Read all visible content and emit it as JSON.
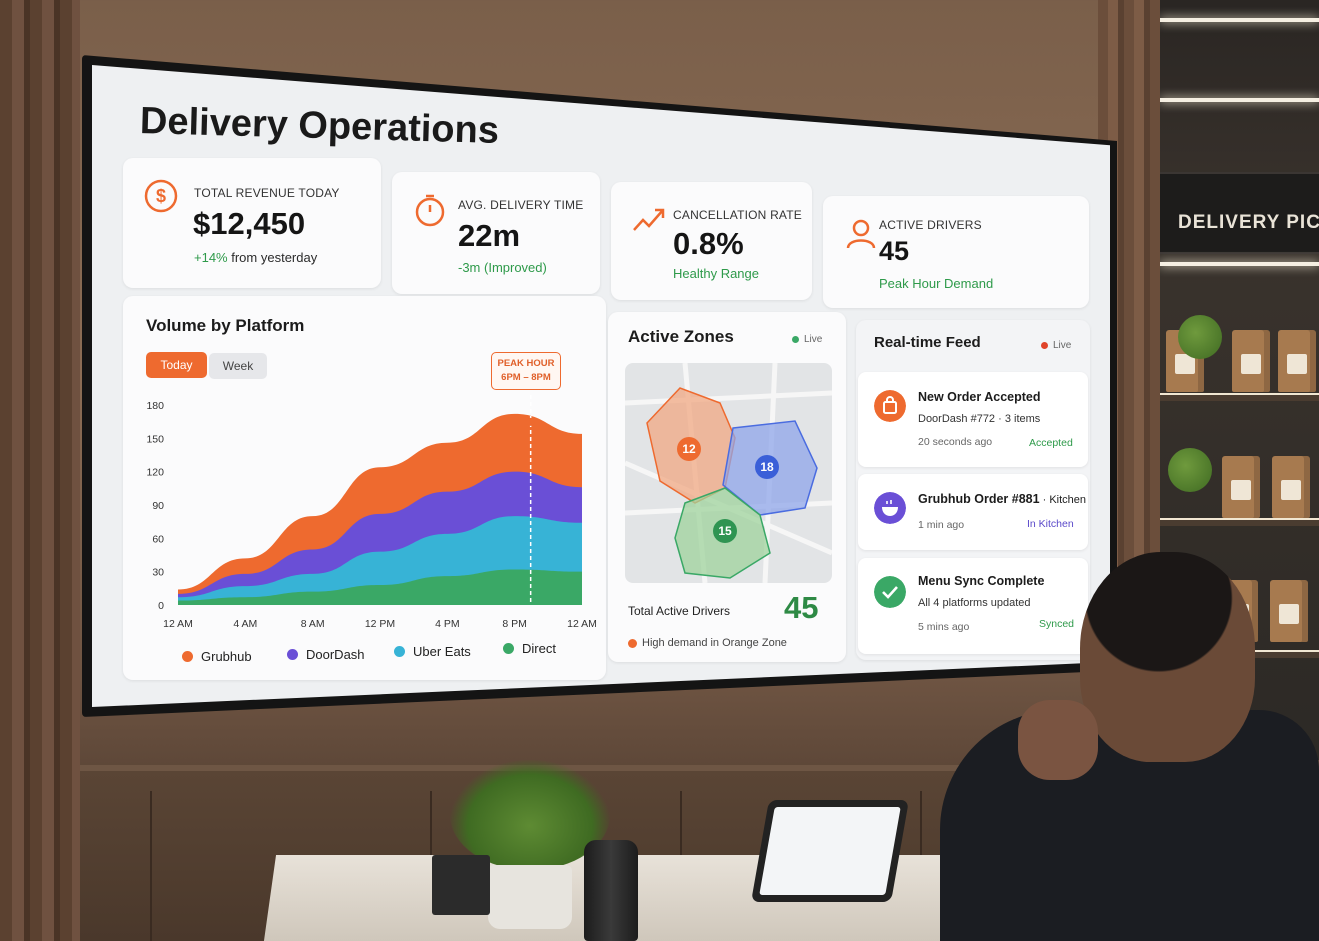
{
  "dashboard": {
    "title": "Delivery Operations",
    "kpis": {
      "revenue": {
        "label": "Total Revenue Today",
        "value": "$12,450",
        "change": "+14%",
        "change_suffix": " from yesterday",
        "icon": "dollar-icon"
      },
      "delivery_time": {
        "label": "Avg. Delivery Time",
        "value": "22m",
        "sub": "-3m (Improved)",
        "icon": "timer-icon"
      },
      "cancellation": {
        "label": "Cancellation Rate",
        "value": "0.8%",
        "sub": "Healthy Range",
        "icon": "trend-up-icon"
      },
      "drivers": {
        "label": "Active Drivers",
        "value": "45",
        "sub": "Peak Hour Demand",
        "icon": "user-icon"
      }
    },
    "volume": {
      "title": "Volume by Platform",
      "tabs": [
        "Today",
        "Week"
      ],
      "active_tab": "Today",
      "peak_badge": {
        "line1": "PEAK HOUR",
        "line2": "6PM – 8PM"
      }
    },
    "zones": {
      "title": "Active Zones",
      "live_label": "Live",
      "pins": [
        "12",
        "18",
        "15"
      ],
      "total_label": "Total Active Drivers",
      "total_value": "45",
      "note": "High demand in Orange Zone"
    },
    "feed": {
      "title": "Real-time Feed",
      "live_label": "Live",
      "items": [
        {
          "title": "New Order Accepted",
          "sub": "DoorDash #772 · 3 items",
          "time": "20 seconds ago",
          "status": "Accepted",
          "icon": "shopping-bag-icon"
        },
        {
          "title": "Grubhub Order #881",
          "title_suffix": " · Kitchen",
          "time": "1 min ago",
          "status": "In Kitchen",
          "icon": "cooking-pot-icon"
        },
        {
          "title": "Menu Sync Complete",
          "sub": "All 4 platforms updated",
          "time": "5 mins ago",
          "status": "Synced",
          "icon": "checkmark-icon"
        }
      ]
    },
    "colors": {
      "accent": "#ee6a2f",
      "grubhub": "#ee6a2f",
      "doordash": "#6a4fd6",
      "uber_eats": "#37b3d6",
      "direct": "#3aa866",
      "positive": "#2e9a4a"
    }
  },
  "background": {
    "store_sign": "DELIVERY PICKU"
  },
  "chart_data": {
    "type": "area",
    "stacked": true,
    "title": "Volume by Platform",
    "x": [
      "12 AM",
      "4 AM",
      "8 AM",
      "12 PM",
      "4 PM",
      "8 PM",
      "12 AM"
    ],
    "ylim": [
      0,
      180
    ],
    "yticks": [
      0,
      30,
      60,
      90,
      120,
      150,
      180
    ],
    "series": [
      {
        "name": "Direct",
        "values": [
          4,
          7,
          12,
          18,
          26,
          32,
          30
        ]
      },
      {
        "name": "Uber Eats",
        "values": [
          3,
          10,
          16,
          30,
          38,
          48,
          44
        ]
      },
      {
        "name": "DoorDash",
        "values": [
          3,
          11,
          22,
          34,
          38,
          40,
          32
        ]
      },
      {
        "name": "Grubhub",
        "values": [
          4,
          14,
          30,
          42,
          44,
          52,
          48
        ]
      }
    ],
    "annotation": "PEAK HOUR 6PM – 8PM",
    "legend": "bottom",
    "grid": false
  }
}
